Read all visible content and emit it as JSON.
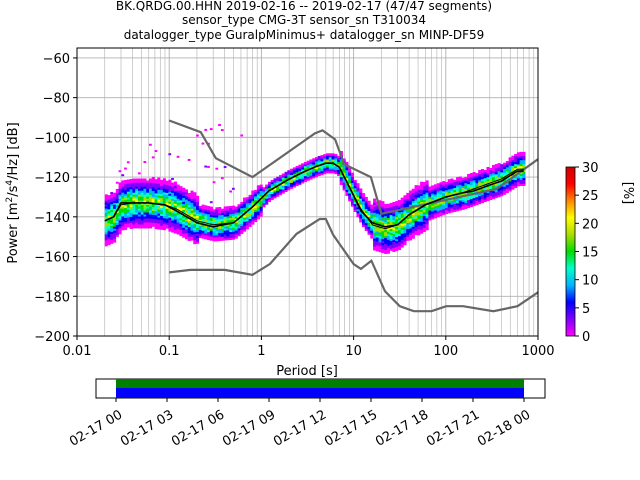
{
  "chart_data": {
    "type": "heatmap",
    "title_lines": [
      "BK.QRDG.00.HHN   2019-02-16 -- 2019-02-17  (47/47 segments)",
      "sensor_type CMG-3T sensor_sn T310034",
      "datalogger_type GuralpMinimus+ datalogger_sn MINP-DF59"
    ],
    "xlabel": "Period [s]",
    "ylabel_parts": {
      "prefix": "Power [m",
      "sup1": "2",
      "mid": "/s",
      "sup2": "4",
      "suffix": "/Hz] [dB]"
    },
    "x_scale": "log",
    "xlim": [
      0.01,
      1000
    ],
    "ylim": [
      -200,
      -55
    ],
    "x_ticks": [
      {
        "value": 0.01,
        "label": "0.01"
      },
      {
        "value": 0.1,
        "label": "0.1"
      },
      {
        "value": 1,
        "label": "1"
      },
      {
        "value": 10,
        "label": "10"
      },
      {
        "value": 100,
        "label": "100"
      },
      {
        "value": 1000,
        "label": "1000"
      }
    ],
    "y_ticks": [
      {
        "value": -60,
        "label": "−60"
      },
      {
        "value": -80,
        "label": "−80"
      },
      {
        "value": -100,
        "label": "−100"
      },
      {
        "value": -120,
        "label": "−120"
      },
      {
        "value": -140,
        "label": "−140"
      },
      {
        "value": -160,
        "label": "−160"
      },
      {
        "value": -180,
        "label": "−180"
      },
      {
        "value": -200,
        "label": "−200"
      }
    ],
    "grid": true,
    "colorbar": {
      "label": "[%]",
      "range": [
        0,
        30
      ],
      "ticks": [
        {
          "value": 0,
          "label": "0"
        },
        {
          "value": 5,
          "label": "5"
        },
        {
          "value": 10,
          "label": "10"
        },
        {
          "value": 15,
          "label": "15"
        },
        {
          "value": 20,
          "label": "20"
        },
        {
          "value": 25,
          "label": "25"
        },
        {
          "value": 30,
          "label": "30"
        }
      ],
      "colors": [
        "#ffffff",
        "#ff00ff",
        "#8000ff",
        "#0000ff",
        "#00b4ff",
        "#00ffcc",
        "#00dd00",
        "#aadd00",
        "#ffff00",
        "#ff8800",
        "#ff0000",
        "#cc0000"
      ]
    },
    "noise_model_high": {
      "x": [
        0.1,
        0.22,
        0.32,
        0.8,
        3.8,
        4.6,
        6.3,
        7.9,
        15.4,
        20,
        354.8,
        1000
      ],
      "y": [
        -91.5,
        -97.4,
        -110.5,
        -120,
        -98,
        -96.5,
        -101,
        -113.5,
        -120,
        -138.5,
        -126,
        -111
      ]
    },
    "noise_model_low": {
      "x": [
        0.1,
        0.17,
        0.4,
        0.8,
        1.24,
        2.4,
        4.3,
        5,
        6,
        10,
        12,
        15.6,
        21.9,
        31.6,
        45,
        70,
        101,
        154,
        328,
        600,
        1000
      ],
      "y": [
        -168,
        -166.7,
        -166.7,
        -169.2,
        -163.7,
        -148.6,
        -141.1,
        -141.1,
        -149,
        -163.8,
        -166.2,
        -162.1,
        -177.5,
        -185,
        -187.5,
        -187.5,
        -185,
        -185,
        -187.5,
        -185,
        -178
      ]
    },
    "mean_curve": {
      "x": [
        0.02,
        0.025,
        0.03,
        0.04,
        0.06,
        0.09,
        0.12,
        0.2,
        0.3,
        0.5,
        0.8,
        1.2,
        2,
        3,
        4,
        5,
        6,
        7,
        9,
        12,
        16,
        22,
        30,
        40,
        60,
        100,
        150,
        200,
        300,
        400,
        600,
        700
      ],
      "y": [
        -142,
        -140,
        -133,
        -133,
        -133,
        -134,
        -137,
        -143,
        -145,
        -143,
        -135,
        -127,
        -121,
        -117,
        -114.5,
        -113,
        -113,
        -115,
        -125,
        -137,
        -143,
        -145,
        -144,
        -139,
        -134,
        -130,
        -128,
        -127,
        -124,
        -122,
        -117,
        -117
      ]
    },
    "mode_curve": {
      "x": [
        0.02,
        0.025,
        0.03,
        0.04,
        0.06,
        0.09,
        0.12,
        0.2,
        0.3,
        0.5,
        0.8,
        1.2,
        2,
        3,
        4,
        5,
        6,
        7,
        9,
        12,
        16,
        22,
        30,
        40,
        60,
        100,
        150,
        200,
        300,
        400,
        600,
        700
      ],
      "y": [
        -142,
        -140,
        -134,
        -133,
        -133,
        -134,
        -136,
        -142,
        -144,
        -143,
        -135,
        -127,
        -121,
        -117,
        -114.5,
        -113,
        -113,
        -115,
        -125,
        -136,
        -144,
        -146,
        -144,
        -139,
        -134,
        -130,
        -128,
        -126,
        -123,
        -121,
        -116,
        -116
      ]
    }
  },
  "timeline": {
    "tick_labels": [
      "02-17 00",
      "02-17 03",
      "02-17 06",
      "02-17 09",
      "02-17 12",
      "02-17 15",
      "02-17 18",
      "02-17 21",
      "02-18 00"
    ],
    "bar_colors": [
      "#008000",
      "#0000ff"
    ]
  }
}
